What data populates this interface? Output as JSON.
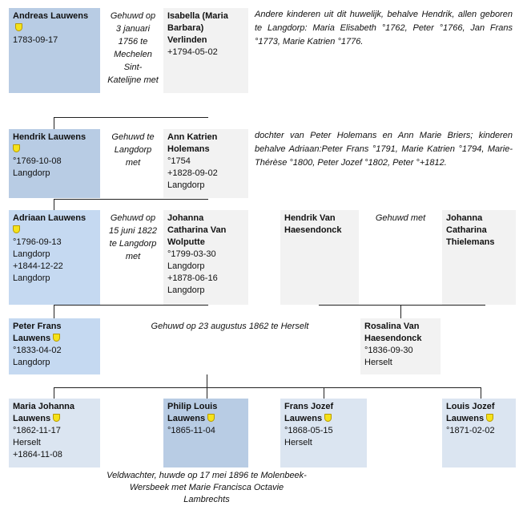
{
  "gen1": {
    "person": {
      "name": "Andreas Lauwens",
      "birth": "1783-09-17"
    },
    "marriage": "Gehuwd op 3 januari 1756 te Mechelen Sint-Katelijne met",
    "spouse": {
      "name": "Isabella (Maria Barbara) Verlinden",
      "death": "+1794-05-02"
    },
    "note": "Andere kinderen uit dit huwelijk, behalve Hendrik, allen geboren te Langdorp: Maria Elisabeth °1762, Peter °1766, Jan Frans °1773, Marie Katrien °1776."
  },
  "gen2": {
    "person": {
      "name": "Hendrik Lauwens",
      "birth": "°1769-10-08",
      "place": "Langdorp"
    },
    "marriage": "Gehuwd te Langdorp met",
    "spouse": {
      "name": "Ann Katrien Holemans",
      "birth": "°1754",
      "death": "+1828-09-02",
      "place": "Langdorp"
    },
    "note": "dochter van Peter Holemans en Ann Marie Briers; kinderen behalve Adriaan:Peter Frans °1791, Marie Katrien °1794, Marie-Thérèse °1800, Peter Jozef °1802, Peter °+1812."
  },
  "gen3": {
    "person": {
      "name": "Adriaan Lauwens",
      "birth": "°1796-09-13",
      "birth_place": "Langdorp",
      "death": "+1844-12-22",
      "death_place": "Langdorp"
    },
    "marriage": "Gehuwd op 15 juni 1822 te Langdorp met",
    "spouse": {
      "name": "Johanna Catharina Van Wolputte",
      "birth": "°1799-03-30",
      "birth_place": "Langdorp",
      "death": "+1878-06-16",
      "death_place": "Langdorp"
    },
    "other_father": "Hendrik Van Haesendonck",
    "other_marriage": "Gehuwd met",
    "other_mother": "Johanna Catharina Thielemans"
  },
  "gen4": {
    "person": {
      "name": "Peter Frans Lauwens",
      "birth": "°1833-04-02",
      "place": "Langdorp"
    },
    "marriage": "Gehuwd op 23 augustus 1862 te Herselt",
    "spouse": {
      "name": "Rosalina Van Haesendonck",
      "birth": "°1836-09-30",
      "place": "Herselt"
    }
  },
  "gen5": {
    "children": [
      {
        "name": "Maria Johanna Lauwens",
        "birth": "°1862-11-17",
        "place": "Herselt",
        "death": "+1864-11-08"
      },
      {
        "name": "Philip Louis Lauwens",
        "birth": "°1865-11-04"
      },
      {
        "name": "Frans Jozef Lauwens",
        "birth": "°1868-05-15",
        "place": "Herselt"
      },
      {
        "name": "Louis Jozef Lauwens",
        "birth": "°1871-02-02"
      }
    ],
    "note": "Veldwachter, huwde op 17 mei 1896 te Molenbeek-Wersbeek met Marie Francisca Octavie Lambrechts"
  },
  "colors": {
    "dark": "#b8cce4",
    "mid": "#c5d9f1",
    "pale": "#dbe5f1",
    "gray": "#f2f2f2"
  }
}
